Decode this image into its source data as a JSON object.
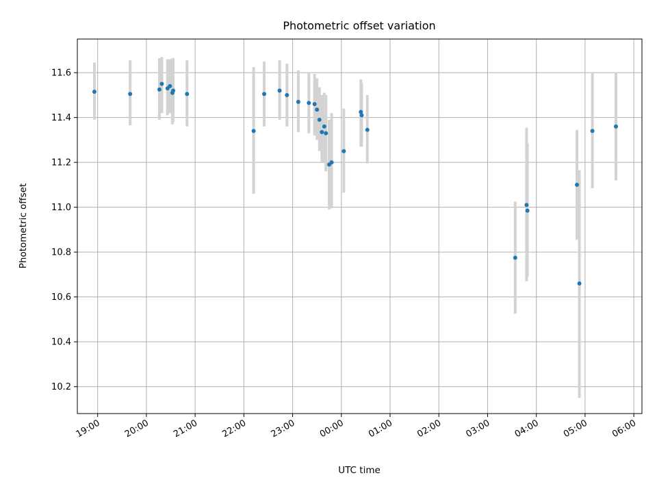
{
  "chart_data": {
    "type": "scatter",
    "title": "Photometric offset variation",
    "xlabel": "UTC time",
    "ylabel": "Photometric offset",
    "x_axis": {
      "type": "time",
      "min": "18:35",
      "max": "06:10",
      "ticks": [
        "19:00",
        "20:00",
        "21:00",
        "22:00",
        "23:00",
        "00:00",
        "01:00",
        "02:00",
        "03:00",
        "04:00",
        "05:00",
        "06:00"
      ]
    },
    "y_axis": {
      "min": 10.08,
      "max": 11.75,
      "ticks": [
        "10.2",
        "10.4",
        "10.6",
        "10.8",
        "11.0",
        "11.2",
        "11.4",
        "11.6"
      ]
    },
    "grid": true,
    "series": [
      {
        "color": "#1f77b4",
        "errorbar_color": "#d3d3d3",
        "points": [
          {
            "time": "18:56",
            "y": 11.515,
            "lo": 11.39,
            "hi": 11.645
          },
          {
            "time": "19:40",
            "y": 11.505,
            "lo": 11.365,
            "hi": 11.655
          },
          {
            "time": "20:16",
            "y": 11.525,
            "lo": 11.39,
            "hi": 11.665
          },
          {
            "time": "20:19",
            "y": 11.55,
            "lo": 11.42,
            "hi": 11.67
          },
          {
            "time": "20:26",
            "y": 11.53,
            "lo": 11.41,
            "hi": 11.66
          },
          {
            "time": "20:29",
            "y": 11.54,
            "lo": 11.42,
            "hi": 11.66
          },
          {
            "time": "20:32",
            "y": 11.51,
            "lo": 11.37,
            "hi": 11.665
          },
          {
            "time": "20:33",
            "y": 11.52,
            "lo": 11.38,
            "hi": 11.665
          },
          {
            "time": "20:50",
            "y": 11.505,
            "lo": 11.36,
            "hi": 11.655
          },
          {
            "time": "22:12",
            "y": 11.34,
            "lo": 11.06,
            "hi": 11.625
          },
          {
            "time": "22:25",
            "y": 11.505,
            "lo": 11.36,
            "hi": 11.65
          },
          {
            "time": "22:44",
            "y": 11.52,
            "lo": 11.39,
            "hi": 11.655
          },
          {
            "time": "22:53",
            "y": 11.5,
            "lo": 11.36,
            "hi": 11.64
          },
          {
            "time": "23:07",
            "y": 11.47,
            "lo": 11.335,
            "hi": 11.61
          },
          {
            "time": "23:20",
            "y": 11.465,
            "lo": 11.33,
            "hi": 11.6
          },
          {
            "time": "23:27",
            "y": 11.46,
            "lo": 11.32,
            "hi": 11.595
          },
          {
            "time": "23:30",
            "y": 11.435,
            "lo": 11.3,
            "hi": 11.575
          },
          {
            "time": "23:33",
            "y": 11.39,
            "lo": 11.25,
            "hi": 11.535
          },
          {
            "time": "23:36",
            "y": 11.335,
            "lo": 11.2,
            "hi": 11.5
          },
          {
            "time": "23:39",
            "y": 11.36,
            "lo": 11.2,
            "hi": 11.51
          },
          {
            "time": "23:41",
            "y": 11.33,
            "lo": 11.16,
            "hi": 11.5
          },
          {
            "time": "23:45",
            "y": 11.19,
            "lo": 10.99,
            "hi": 11.39
          },
          {
            "time": "23:48",
            "y": 11.2,
            "lo": 10.995,
            "hi": 11.42
          },
          {
            "time": "00:03",
            "y": 11.25,
            "lo": 11.065,
            "hi": 11.44
          },
          {
            "time": "00:24",
            "y": 11.425,
            "lo": 11.27,
            "hi": 11.57
          },
          {
            "time": "00:25",
            "y": 11.41,
            "lo": 11.27,
            "hi": 11.555
          },
          {
            "time": "00:32",
            "y": 11.345,
            "lo": 11.195,
            "hi": 11.5
          },
          {
            "time": "03:34",
            "y": 10.775,
            "lo": 10.525,
            "hi": 11.025
          },
          {
            "time": "03:48",
            "y": 11.01,
            "lo": 10.67,
            "hi": 11.355
          },
          {
            "time": "03:49",
            "y": 10.985,
            "lo": 10.69,
            "hi": 11.285
          },
          {
            "time": "04:50",
            "y": 11.1,
            "lo": 10.855,
            "hi": 11.345
          },
          {
            "time": "04:53",
            "y": 10.66,
            "lo": 10.15,
            "hi": 11.165
          },
          {
            "time": "05:09",
            "y": 11.34,
            "lo": 11.085,
            "hi": 11.6
          },
          {
            "time": "05:38",
            "y": 11.36,
            "lo": 11.12,
            "hi": 11.6
          }
        ]
      }
    ]
  }
}
